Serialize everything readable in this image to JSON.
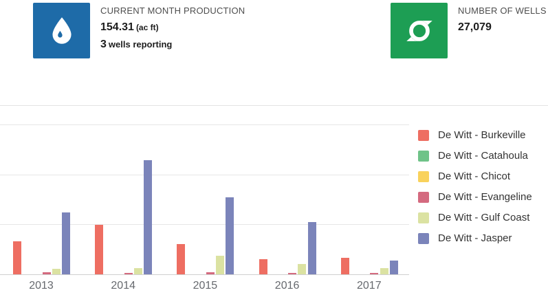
{
  "cards": [
    {
      "title": "CURRENT MONTH PRODUCTION",
      "value": "154.31",
      "unit": "(ac ft)",
      "sub_value": "3",
      "sub_label": "wells reporting",
      "icon": "water-drop-icon",
      "icon_bg": "#1e6ba8"
    },
    {
      "title": "NUMBER OF WELLS",
      "value": "27,079",
      "icon": "storm-icon",
      "icon_bg": "#1d9e54"
    }
  ],
  "chart_data": {
    "type": "bar",
    "title": "",
    "xlabel": "",
    "ylabel": "",
    "categories": [
      "2013",
      "2014",
      "2015",
      "2016",
      "2017"
    ],
    "series": [
      {
        "name": "De Witt - Burkeville",
        "color": "#ee6e62",
        "values": [
          0.66,
          0.99,
          0.61,
          0.3,
          0.33
        ]
      },
      {
        "name": "De Witt - Catahoula",
        "color": "#6fc388",
        "values": [
          0,
          0,
          0,
          0,
          0
        ]
      },
      {
        "name": "De Witt - Chicot",
        "color": "#f9d25c",
        "values": [
          0,
          0,
          0,
          0,
          0
        ]
      },
      {
        "name": "De Witt - Evangeline",
        "color": "#d46a7f",
        "values": [
          0.04,
          0.03,
          0.04,
          0.03,
          0.03
        ]
      },
      {
        "name": "De Witt - Gulf Coast",
        "color": "#dbe2a2",
        "values": [
          0.11,
          0.12,
          0.37,
          0.21,
          0.12
        ]
      },
      {
        "name": "De Witt - Jasper",
        "color": "#7b84ba",
        "values": [
          1.24,
          2.29,
          1.54,
          1.05,
          0.28
        ]
      }
    ],
    "ylim": [
      0,
      3.26
    ],
    "grid": "horizontal",
    "legend_position": "right",
    "note": "y-axis tick labels are cropped out of the screenshot; values are in gridline units (1 = one gridline interval)"
  }
}
